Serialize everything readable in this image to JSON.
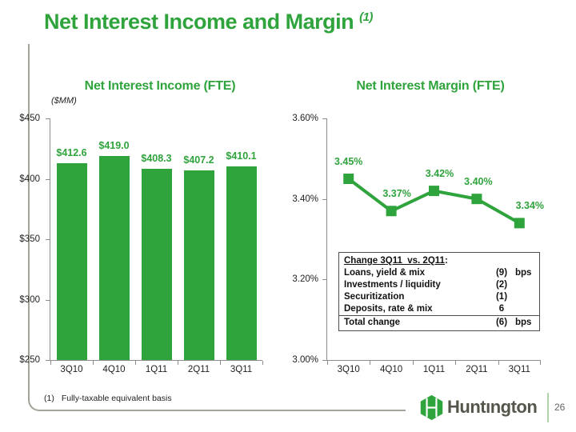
{
  "slide": {
    "title": "Net Interest Income and Margin",
    "title_sup": "(1)",
    "footnote_marker": "(1)",
    "footnote_text": "Fully-taxable equivalent basis",
    "logo_text": "Huntıngton",
    "page_number": "26"
  },
  "colors": {
    "green": "#2fa33c",
    "footer_line": "#a3a399",
    "axis": "#8c8c8c",
    "logo_text": "#56554c",
    "separator": "#aed6a8"
  },
  "chart_data": [
    {
      "type": "bar",
      "title": "Net Interest Income (FTE)",
      "unit_label": "($MM)",
      "categories": [
        "3Q10",
        "4Q10",
        "1Q11",
        "2Q11",
        "3Q11"
      ],
      "values": [
        412.6,
        419.0,
        408.3,
        407.2,
        410.1
      ],
      "value_labels": [
        "$412.6",
        "$419.0",
        "$408.3",
        "$407.2",
        "$410.1"
      ],
      "ylim": [
        250,
        450
      ],
      "yticks": [
        {
          "value": 450,
          "label": "$450"
        },
        {
          "value": 400,
          "label": "$400"
        },
        {
          "value": 350,
          "label": "$350"
        },
        {
          "value": 300,
          "label": "$300"
        },
        {
          "value": 250,
          "label": "$250"
        }
      ],
      "grid": false,
      "legend": "none"
    },
    {
      "type": "line",
      "title": "Net Interest Margin (FTE)",
      "categories": [
        "3Q10",
        "4Q10",
        "1Q11",
        "2Q11",
        "3Q11"
      ],
      "values": [
        3.45,
        3.37,
        3.42,
        3.4,
        3.34
      ],
      "value_labels": [
        "3.45%",
        "3.37%",
        "3.42%",
        "3.40%",
        "3.34%"
      ],
      "ylim": [
        3.0,
        3.6
      ],
      "yticks": [
        {
          "value": 3.6,
          "label": "3.60%"
        },
        {
          "value": 3.4,
          "label": "3.40%"
        },
        {
          "value": 3.2,
          "label": "3.20%"
        },
        {
          "value": 3.0,
          "label": "3.00%"
        }
      ],
      "marker": "square",
      "grid": false,
      "legend": "none"
    }
  ],
  "change_table": {
    "heading": "Change 3Q11  vs. 2Q11",
    "heading_suffix": ":",
    "rows": [
      {
        "label": "Loans, yield & mix",
        "value": "(9)",
        "unit": "bps"
      },
      {
        "label": "Investments / liquidity",
        "value": "(2)",
        "unit": ""
      },
      {
        "label": "Securitization",
        "value": "(1)",
        "unit": ""
      },
      {
        "label": "Deposits, rate & mix",
        "value": "6",
        "unit": ""
      }
    ],
    "total": {
      "label": "Total change",
      "value": "(6)",
      "unit": "bps"
    }
  }
}
